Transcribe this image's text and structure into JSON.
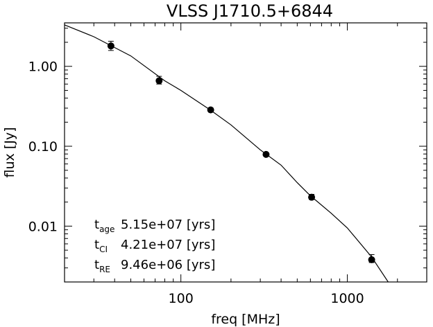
{
  "chart_data": {
    "type": "scatter",
    "title": "VLSS J1710.5+6844",
    "xlabel": "freq [MHz]",
    "ylabel": "flux [Jy]",
    "x_scale": "log",
    "y_scale": "log",
    "xlim": [
      20,
      3000
    ],
    "ylim": [
      0.002,
      3.5
    ],
    "grid": false,
    "x_major_ticks": [
      {
        "value": 100,
        "label": "100"
      },
      {
        "value": 1000,
        "label": "1000"
      }
    ],
    "y_major_ticks": [
      {
        "value": 0.01,
        "label": "0.01"
      },
      {
        "value": 0.1,
        "label": "0.10"
      },
      {
        "value": 1,
        "label": "1.00"
      }
    ],
    "series": [
      {
        "points": [
          {
            "x": 38,
            "y": 1.8,
            "err_lo": 1.58,
            "err_hi": 2.06
          },
          {
            "x": 74,
            "y": 0.66,
            "err_lo": 0.6,
            "err_hi": 0.75
          },
          {
            "x": 151,
            "y": 0.285,
            "err_lo": 0.275,
            "err_hi": 0.3
          },
          {
            "x": 325,
            "y": 0.079,
            "err_lo": 0.076,
            "err_hi": 0.082
          },
          {
            "x": 610,
            "y": 0.023,
            "err_lo": 0.0215,
            "err_hi": 0.025
          },
          {
            "x": 1400,
            "y": 0.0038,
            "err_lo": 0.0035,
            "err_hi": 0.0044
          }
        ]
      }
    ],
    "fit_curve": [
      {
        "x": 20,
        "y": 3.3
      },
      {
        "x": 30,
        "y": 2.35
      },
      {
        "x": 50,
        "y": 1.35
      },
      {
        "x": 80,
        "y": 0.66
      },
      {
        "x": 100,
        "y": 0.5
      },
      {
        "x": 150,
        "y": 0.285
      },
      {
        "x": 200,
        "y": 0.185
      },
      {
        "x": 300,
        "y": 0.09
      },
      {
        "x": 400,
        "y": 0.058
      },
      {
        "x": 500,
        "y": 0.035
      },
      {
        "x": 600,
        "y": 0.024
      },
      {
        "x": 800,
        "y": 0.0145
      },
      {
        "x": 1000,
        "y": 0.0095
      },
      {
        "x": 1400,
        "y": 0.0041
      },
      {
        "x": 1760,
        "y": 0.002
      }
    ],
    "annotations": [
      {
        "name": "t",
        "sub": "age",
        "value": "5.15e+07 [yrs]"
      },
      {
        "name": "t",
        "sub": "CI",
        "value": "4.21e+07 [yrs]"
      },
      {
        "name": "t",
        "sub": "RE",
        "value": "9.46e+06 [yrs]"
      }
    ]
  }
}
